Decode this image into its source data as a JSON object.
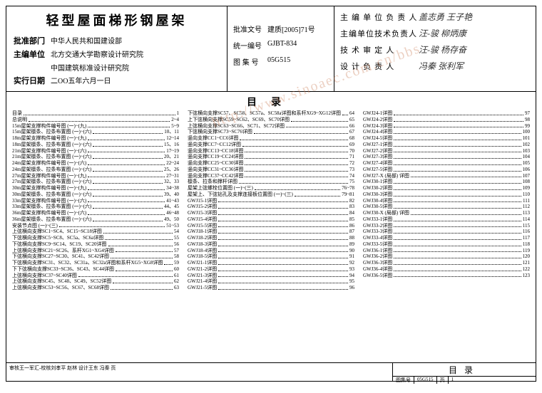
{
  "title": "轻型屋面梯形钢屋架",
  "left_fields": [
    {
      "label": "批准部门",
      "value": "中华人民共和国建设部"
    },
    {
      "label": "主编单位",
      "value": "北方交通大学勘察设计研究院\n中国建筑标准设计研究院"
    },
    {
      "label": "实行日期",
      "value": "二OO五年六月一日"
    }
  ],
  "mid_fields": [
    {
      "label": "批准文号",
      "value": "建质[2005]71号"
    },
    {
      "label": "统一编号",
      "value": "GJBT-834"
    },
    {
      "label": "图 集 号",
      "value": "05G515"
    }
  ],
  "signatures": [
    {
      "label": "主 编 单 位 负 责 人",
      "value": "盖志勇 王子艳"
    },
    {
      "label": "主编单位技术负责人",
      "value": "汪-骏 柳炳康"
    },
    {
      "label": "技 术 审 定 人",
      "value": "汪-骏 杨存奋"
    },
    {
      "label": "设 计 负 责 人",
      "value": "冯秦 张利军"
    }
  ],
  "toc_title": "目录",
  "watermark": "http://www.sinoaec.com.cn/bbs",
  "toc": {
    "col1": [
      {
        "t": "目录",
        "p": "1"
      },
      {
        "t": "总说明",
        "p": "2~4"
      },
      {
        "t": "15m屋架支撑构件编号图 (一)~(九)",
        "p": "5~9"
      },
      {
        "t": "15m屋架檩条、拉条布置图 (一)~(六)",
        "p": "10、11"
      },
      {
        "t": "18m屋架支撑构件编号图 (一)~(九)",
        "p": "12~14"
      },
      {
        "t": "18m屋架檩条、拉条布置图 (一)~(六)",
        "p": "15、16"
      },
      {
        "t": "21m屋架支撑构件编号图 (一)~(六)",
        "p": "17~19"
      },
      {
        "t": "21m屋架檩条、拉条布置图 (一)~(六)",
        "p": "20、21"
      },
      {
        "t": "24m屋架支撑构件编号图 (一)~(六)",
        "p": "22~24"
      },
      {
        "t": "24m屋架檩条、拉条布置图 (一)~(六)",
        "p": "25、26"
      },
      {
        "t": "27m屋架支撑构件编号图 (一)~(九)",
        "p": "27~31"
      },
      {
        "t": "27m屋架檩条、拉条布置图 (一)~(六)",
        "p": "32、33"
      },
      {
        "t": "30m屋架支撑构件编号图 (一)~(九)",
        "p": "34~38"
      },
      {
        "t": "30m屋架檩条、拉条布置图 (一)~(六)",
        "p": "39、40"
      },
      {
        "t": "33m屋架支撑构件编号图 (一)~(六)",
        "p": "41~43"
      },
      {
        "t": "33m屋架檩条、拉条布置图 (一)~(六)",
        "p": "44、45"
      },
      {
        "t": "36m屋架支撑构件编号图 (一)~(六)",
        "p": "46~48"
      },
      {
        "t": "36m屋架檩条、拉条布置图 (一)~(六)",
        "p": "49、50"
      },
      {
        "t": "安装节点图 (一)~(三)",
        "p": "51~53"
      },
      {
        "t": "上弦横向支撑SC1~SC4、SC15~SC18详图",
        "p": "54"
      },
      {
        "t": "下弦横向支撑SC5~SC8、SC5a、SC6a详图",
        "p": "55"
      },
      {
        "t": "下弦横向支撑SC9~SC14、SC19、SC20详图",
        "p": "56"
      },
      {
        "t": "上弦横向支撑SC21~SC26、系杆XG1~XG4详图",
        "p": "57"
      },
      {
        "t": "下弦横向支撑SC27~SC30、SC41、SC42详图",
        "p": "58"
      },
      {
        "t": "下弦横向支撑SC31、SC32、SC31a、SC32a详图和系杆XG5~XG8详图",
        "p": "59"
      },
      {
        "t": "下下弦横向支撑SC33~SC36、SC43、SC44详图",
        "p": "60"
      },
      {
        "t": "上弦横向支撑SC37~SC40详图",
        "p": "61"
      },
      {
        "t": "上弦横向支撑SC45、SC48、SC49、SC52详图",
        "p": "62"
      },
      {
        "t": "上弦横向支撑SC53~SC56、SC67、SC68详图",
        "p": "63"
      }
    ],
    "col2": [
      {
        "t": "下弦横向支撑SC57、SC58、SC57a、SC58a详图和系杆XG9~XG12详图",
        "p": "64"
      },
      {
        "t": "上下弦横向支撑SC59~SC62、SC69、SC70详图",
        "p": "65"
      },
      {
        "t": "上弦横向支撑SC63~SC66、SC71、SC72详图",
        "p": "66"
      },
      {
        "t": "下弦横向支撑SC73~SC76详图",
        "p": "67"
      },
      {
        "t": "竖向支撑CC1~CC6详图",
        "p": "68"
      },
      {
        "t": "竖向支撑CC7~CC12详图",
        "p": "69"
      },
      {
        "t": "竖向支撑CC13~CC18详图",
        "p": "70"
      },
      {
        "t": "竖向支撑CC19~CC24详图",
        "p": "71"
      },
      {
        "t": "竖向支撑CC25~CC30详图",
        "p": "72"
      },
      {
        "t": "竖向支撑CC31~CC36详图",
        "p": "73"
      },
      {
        "t": "竖向支撑CC37~CC42详图",
        "p": "74"
      },
      {
        "t": "檩条、拉条和撑杆详图",
        "p": "75"
      },
      {
        "t": "屋架上弦螺栓位置图 (一)~(三)",
        "p": "76~78"
      },
      {
        "t": "屋架上、下弦钻孔及支撑连接板位置图 (一)~(三)",
        "p": "79~81"
      },
      {
        "t": "GWJ15-1详图",
        "p": "82"
      },
      {
        "t": "GWJ15-2详图",
        "p": "83"
      },
      {
        "t": "GWJ15-3详图",
        "p": "84"
      },
      {
        "t": "GWJ15-4详图",
        "p": "85"
      },
      {
        "t": "GWJ15-5详图",
        "p": "86"
      },
      {
        "t": "GWJ18-1详图",
        "p": "87"
      },
      {
        "t": "GWJ18-2详图",
        "p": "88"
      },
      {
        "t": "GWJ18-3详图",
        "p": "89"
      },
      {
        "t": "GWJ18-4详图",
        "p": "90"
      },
      {
        "t": "GWJ18-5详图",
        "p": "91"
      },
      {
        "t": "GWJ21-1详图",
        "p": "92"
      },
      {
        "t": "GWJ21-2详图",
        "p": "93"
      },
      {
        "t": "GWJ21-3详图",
        "p": "94"
      },
      {
        "t": "GWJ21-4详图",
        "p": "95"
      },
      {
        "t": "GWJ21-5详图",
        "p": "96"
      }
    ],
    "col3": [
      {
        "t": "GWJ24-1详图",
        "p": "97"
      },
      {
        "t": "GWJ24-2详图",
        "p": "98"
      },
      {
        "t": "GWJ24-3详图",
        "p": "99"
      },
      {
        "t": "GWJ24-4详图",
        "p": "100"
      },
      {
        "t": "GWJ24-5详图",
        "p": "101"
      },
      {
        "t": "GWJ27-1详图",
        "p": "102"
      },
      {
        "t": "GWJ27-2详图",
        "p": "103"
      },
      {
        "t": "GWJ27-3详图",
        "p": "104"
      },
      {
        "t": "GWJ27-4详图",
        "p": "105"
      },
      {
        "t": "GWJ27-5详图",
        "p": "106"
      },
      {
        "t": "GWJ27-X (局部) 详图",
        "p": "107"
      },
      {
        "t": "GWJ30-1详图",
        "p": "108"
      },
      {
        "t": "GWJ30-2详图",
        "p": "109"
      },
      {
        "t": "GWJ30-3详图",
        "p": "110"
      },
      {
        "t": "GWJ30-4详图",
        "p": "111"
      },
      {
        "t": "GWJ30-5详图",
        "p": "112"
      },
      {
        "t": "GWJ30-X (局部) 详图",
        "p": "113"
      },
      {
        "t": "GWJ33-1详图",
        "p": "114"
      },
      {
        "t": "GWJ33-2详图",
        "p": "115"
      },
      {
        "t": "GWJ33-3详图",
        "p": "116"
      },
      {
        "t": "GWJ33-4详图",
        "p": "117"
      },
      {
        "t": "GWJ33-5详图",
        "p": "118"
      },
      {
        "t": "GWJ36-1详图",
        "p": "119"
      },
      {
        "t": "GWJ36-2详图",
        "p": "120"
      },
      {
        "t": "GWJ36-3详图",
        "p": "121"
      },
      {
        "t": "GWJ36-4详图",
        "p": "122"
      },
      {
        "t": "GWJ36-5详图",
        "p": "123"
      }
    ]
  },
  "footer": {
    "left_text": "审核王一军汇-校核刘孝平 赵林 设计王东 冯秦 页",
    "toc_label": "目录",
    "set_label": "图集号",
    "set_no": "05G515",
    "page_label": "页",
    "page_no": "1"
  }
}
